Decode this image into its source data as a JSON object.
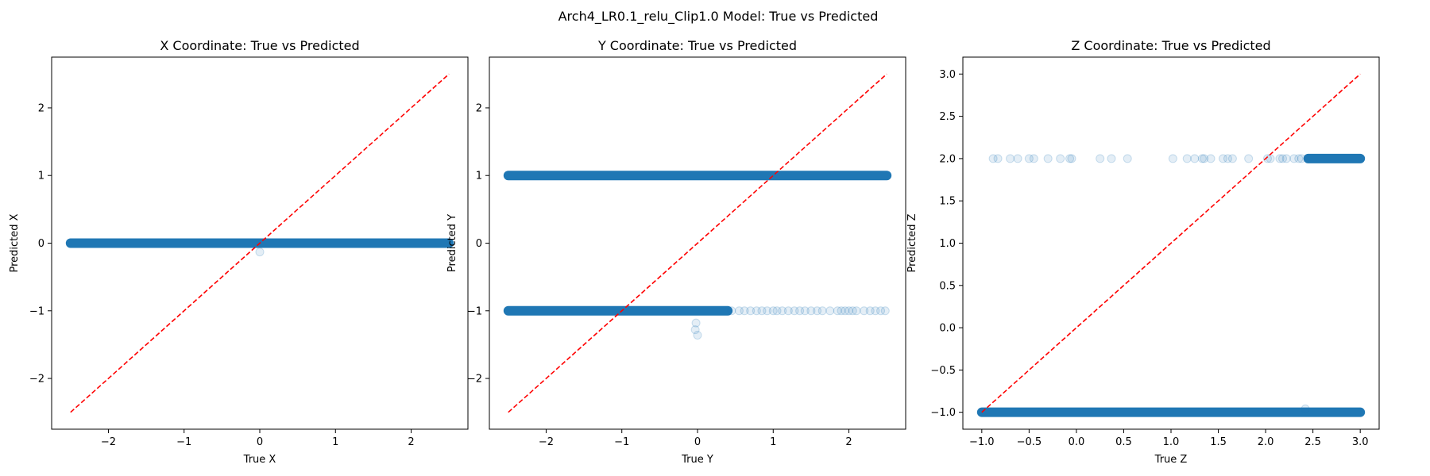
{
  "figure": {
    "suptitle": "Arch4_LR0.1_relu_Clip1.0 Model: True vs Predicted"
  },
  "colors": {
    "points": "#1f77b4",
    "reference_line": "#ff0000",
    "axes": "#000000"
  },
  "chart_data": [
    {
      "type": "scatter",
      "title": "X Coordinate: True vs Predicted",
      "xlabel": "True X",
      "ylabel": "Predicted X",
      "xlim": [
        -2.75,
        2.75
      ],
      "ylim": [
        -2.75,
        2.75
      ],
      "xticks": [
        -2,
        -1,
        0,
        1,
        2
      ],
      "yticks": [
        -2,
        -1,
        0,
        1,
        2
      ],
      "xtick_labels": [
        "−2",
        "−1",
        "0",
        "1",
        "2"
      ],
      "ytick_labels": [
        "−2",
        "−1",
        "0",
        "1",
        "2"
      ],
      "grid": false,
      "reference_line": {
        "style": "dashed",
        "from": [
          -2.5,
          -2.5
        ],
        "to": [
          2.5,
          2.5
        ]
      },
      "dense_segments": [
        {
          "x_start": -2.5,
          "x_end": 2.5,
          "y": 0
        }
      ],
      "outlier_points": [
        {
          "x": 0.0,
          "y": -0.13
        }
      ]
    },
    {
      "type": "scatter",
      "title": "Y Coordinate: True vs Predicted",
      "xlabel": "True Y",
      "ylabel": "Predicted Y",
      "xlim": [
        -2.75,
        2.75
      ],
      "ylim": [
        -2.75,
        2.75
      ],
      "xticks": [
        -2,
        -1,
        0,
        1,
        2
      ],
      "yticks": [
        -2,
        -1,
        0,
        1,
        2
      ],
      "xtick_labels": [
        "−2",
        "−1",
        "0",
        "1",
        "2"
      ],
      "ytick_labels": [
        "−2",
        "−1",
        "0",
        "1",
        "2"
      ],
      "grid": false,
      "reference_line": {
        "style": "dashed",
        "from": [
          -2.5,
          -2.5
        ],
        "to": [
          2.5,
          2.5
        ]
      },
      "dense_segments": [
        {
          "x_start": -2.5,
          "x_end": 2.5,
          "y": 1
        },
        {
          "x_start": -2.5,
          "x_end": 0.4,
          "y": -1
        }
      ],
      "outlier_points": [
        {
          "x": 0.45,
          "y": -1
        },
        {
          "x": 0.55,
          "y": -1
        },
        {
          "x": 0.62,
          "y": -1
        },
        {
          "x": 0.7,
          "y": -1
        },
        {
          "x": 0.78,
          "y": -1
        },
        {
          "x": 0.85,
          "y": -1
        },
        {
          "x": 0.92,
          "y": -1
        },
        {
          "x": 1.0,
          "y": -1
        },
        {
          "x": 1.05,
          "y": -1
        },
        {
          "x": 1.12,
          "y": -1
        },
        {
          "x": 1.2,
          "y": -1
        },
        {
          "x": 1.28,
          "y": -1
        },
        {
          "x": 1.35,
          "y": -1
        },
        {
          "x": 1.42,
          "y": -1
        },
        {
          "x": 1.5,
          "y": -1
        },
        {
          "x": 1.58,
          "y": -1
        },
        {
          "x": 1.65,
          "y": -1
        },
        {
          "x": 1.75,
          "y": -1
        },
        {
          "x": 1.85,
          "y": -1
        },
        {
          "x": 1.9,
          "y": -1
        },
        {
          "x": 1.95,
          "y": -1
        },
        {
          "x": 2.0,
          "y": -1
        },
        {
          "x": 2.05,
          "y": -1
        },
        {
          "x": 2.1,
          "y": -1
        },
        {
          "x": 2.2,
          "y": -1
        },
        {
          "x": 2.28,
          "y": -1
        },
        {
          "x": 2.35,
          "y": -1
        },
        {
          "x": 2.42,
          "y": -1
        },
        {
          "x": 2.48,
          "y": -1
        },
        {
          "x": -0.02,
          "y": -1.18
        },
        {
          "x": -0.03,
          "y": -1.28
        },
        {
          "x": 0.0,
          "y": -1.36
        }
      ]
    },
    {
      "type": "scatter",
      "title": "Z Coordinate: True vs Predicted",
      "xlabel": "True Z",
      "ylabel": "Predicted Z",
      "xlim": [
        -1.2,
        3.2
      ],
      "ylim": [
        -1.2,
        3.2
      ],
      "xticks": [
        -1.0,
        -0.5,
        0.0,
        0.5,
        1.0,
        1.5,
        2.0,
        2.5,
        3.0
      ],
      "yticks": [
        -1.0,
        -0.5,
        0.0,
        0.5,
        1.0,
        1.5,
        2.0,
        2.5,
        3.0
      ],
      "xtick_labels": [
        "−1.0",
        "−0.5",
        "0.0",
        "0.5",
        "1.0",
        "1.5",
        "2.0",
        "2.5",
        "3.0"
      ],
      "ytick_labels": [
        "−1.0",
        "−0.5",
        "0.0",
        "0.5",
        "1.0",
        "1.5",
        "2.0",
        "2.5",
        "3.0"
      ],
      "grid": false,
      "reference_line": {
        "style": "dashed",
        "from": [
          -1.0,
          -1.0
        ],
        "to": [
          3.0,
          3.0
        ]
      },
      "dense_segments": [
        {
          "x_start": -1.0,
          "x_end": 3.0,
          "y": -1
        },
        {
          "x_start": 2.45,
          "x_end": 3.0,
          "y": 2
        }
      ],
      "outlier_points": [
        {
          "x": -0.88,
          "y": 2
        },
        {
          "x": -0.83,
          "y": 2
        },
        {
          "x": -0.7,
          "y": 2
        },
        {
          "x": -0.62,
          "y": 2
        },
        {
          "x": -0.5,
          "y": 2
        },
        {
          "x": -0.45,
          "y": 2
        },
        {
          "x": -0.3,
          "y": 2
        },
        {
          "x": -0.17,
          "y": 2
        },
        {
          "x": -0.07,
          "y": 2
        },
        {
          "x": -0.05,
          "y": 2
        },
        {
          "x": 0.25,
          "y": 2
        },
        {
          "x": 0.37,
          "y": 2
        },
        {
          "x": 0.54,
          "y": 2
        },
        {
          "x": 1.02,
          "y": 2
        },
        {
          "x": 1.17,
          "y": 2
        },
        {
          "x": 1.25,
          "y": 2
        },
        {
          "x": 1.33,
          "y": 2
        },
        {
          "x": 1.35,
          "y": 2
        },
        {
          "x": 1.42,
          "y": 2
        },
        {
          "x": 1.55,
          "y": 2
        },
        {
          "x": 1.6,
          "y": 2
        },
        {
          "x": 1.65,
          "y": 2
        },
        {
          "x": 1.82,
          "y": 2
        },
        {
          "x": 2.02,
          "y": 2
        },
        {
          "x": 2.05,
          "y": 2
        },
        {
          "x": 2.15,
          "y": 2
        },
        {
          "x": 2.18,
          "y": 2
        },
        {
          "x": 2.22,
          "y": 2
        },
        {
          "x": 2.3,
          "y": 2
        },
        {
          "x": 2.35,
          "y": 2
        },
        {
          "x": 2.38,
          "y": 2
        },
        {
          "x": 2.42,
          "y": -0.96
        }
      ]
    }
  ]
}
